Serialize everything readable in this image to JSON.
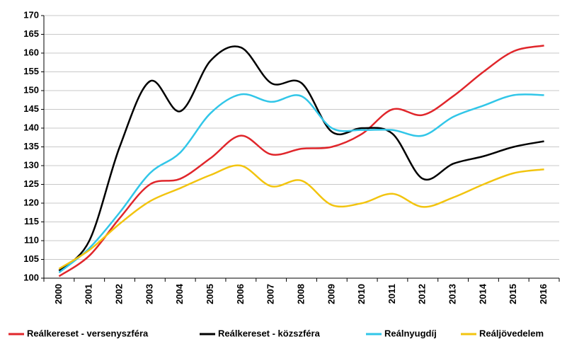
{
  "chart_data": {
    "type": "line",
    "categories": [
      "2000",
      "2001",
      "2002",
      "2003",
      "2004",
      "2005",
      "2006",
      "2007",
      "2008",
      "2009",
      "2010",
      "2011",
      "2012",
      "2013",
      "2014",
      "2015",
      "2016"
    ],
    "series": [
      {
        "name": "Reálkereset - versenyszféra",
        "color": "#e0262b",
        "values": [
          100.5,
          106,
          116,
          125,
          126.5,
          132,
          138,
          133,
          134.5,
          135,
          138.5,
          145,
          143.5,
          148.5,
          155,
          160.5,
          162
        ]
      },
      {
        "name": "Reálkereset - közszféra",
        "color": "#000000",
        "values": [
          102,
          110,
          135,
          152.5,
          144.5,
          158,
          161.5,
          152,
          152,
          139,
          140,
          138.5,
          126.5,
          130.5,
          132.5,
          135,
          136.5
        ]
      },
      {
        "name": "Reálnyugdíj",
        "color": "#31c6e8",
        "values": [
          101.5,
          108,
          117.5,
          128,
          133.5,
          144,
          149,
          147,
          148.5,
          140,
          139.5,
          139.5,
          138,
          143,
          146,
          148.8,
          148.8
        ]
      },
      {
        "name": "Reáljövedelem",
        "color": "#f2c40f",
        "values": [
          102.5,
          107.5,
          114.5,
          120.5,
          124,
          127.5,
          130,
          124.5,
          126,
          119.5,
          120,
          122.5,
          119,
          121.5,
          125,
          128,
          129
        ]
      }
    ],
    "ylim": [
      100,
      170
    ],
    "yticks": [
      100,
      105,
      110,
      115,
      120,
      125,
      130,
      135,
      140,
      145,
      150,
      155,
      160,
      165,
      170
    ],
    "grid": true,
    "legend": "bottom"
  }
}
